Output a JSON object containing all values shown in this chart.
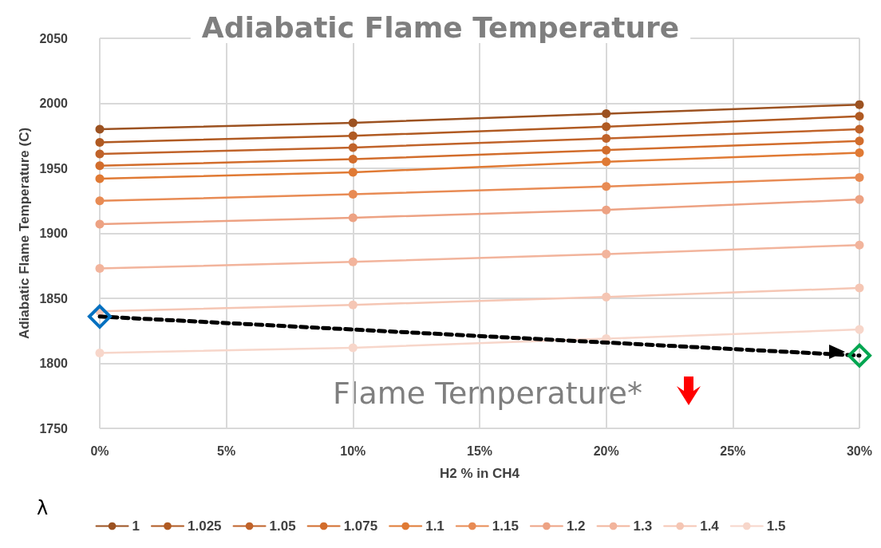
{
  "chart_data": {
    "type": "line",
    "title": "Adiabatic Flame Temperature",
    "xlabel": "H2 % in CH4",
    "ylabel": "Adiabatic Flame Temperature (C)",
    "legend_title": "λ",
    "x": [
      0,
      10,
      20,
      30
    ],
    "xlim": [
      0,
      30
    ],
    "xticks": [
      {
        "value": 0,
        "label": "0%"
      },
      {
        "value": 5,
        "label": "5%"
      },
      {
        "value": 10,
        "label": "10%"
      },
      {
        "value": 15,
        "label": "15%"
      },
      {
        "value": 20,
        "label": "20%"
      },
      {
        "value": 25,
        "label": "25%"
      },
      {
        "value": 30,
        "label": "30%"
      }
    ],
    "ylim": [
      1750,
      2050
    ],
    "yticks": [
      1750,
      1800,
      1850,
      1900,
      1950,
      2000,
      2050
    ],
    "grid": true,
    "legend": "bottom",
    "marker": "circle",
    "line_style": "solid",
    "series": [
      {
        "name": "1",
        "color": "#9c5221",
        "values": [
          1980,
          1985,
          1992,
          1999
        ]
      },
      {
        "name": "1.025",
        "color": "#b05a22",
        "values": [
          1970,
          1975,
          1982,
          1990
        ]
      },
      {
        "name": "1.05",
        "color": "#c0632a",
        "values": [
          1961,
          1966,
          1973,
          1980
        ]
      },
      {
        "name": "1.075",
        "color": "#d26d2c",
        "values": [
          1952,
          1957,
          1964,
          1971
        ]
      },
      {
        "name": "1.1",
        "color": "#e07a34",
        "values": [
          1942,
          1947,
          1955,
          1962
        ]
      },
      {
        "name": "1.15",
        "color": "#e88b54",
        "values": [
          1925,
          1930,
          1936,
          1943
        ]
      },
      {
        "name": "1.2",
        "color": "#eda283",
        "values": [
          1907,
          1912,
          1918,
          1926
        ]
      },
      {
        "name": "1.3",
        "color": "#f2b49c",
        "values": [
          1873,
          1878,
          1884,
          1891
        ]
      },
      {
        "name": "1.4",
        "color": "#f5c6b4",
        "values": [
          1840,
          1845,
          1851,
          1858
        ]
      },
      {
        "name": "1.5",
        "color": "#f7d6ca",
        "values": [
          1808,
          1812,
          1819,
          1826
        ]
      },
      {
        "type": "line",
        "x": [
          0,
          30
        ],
        "values": [
          1836,
          1806
        ],
        "color": "#000000",
        "colors": [
          "#0070c0",
          "#00a550"
        ],
        "line_style": "dashed",
        "marker": "diamond"
      }
    ],
    "annotations": [
      "Flame Temperature*"
    ]
  }
}
